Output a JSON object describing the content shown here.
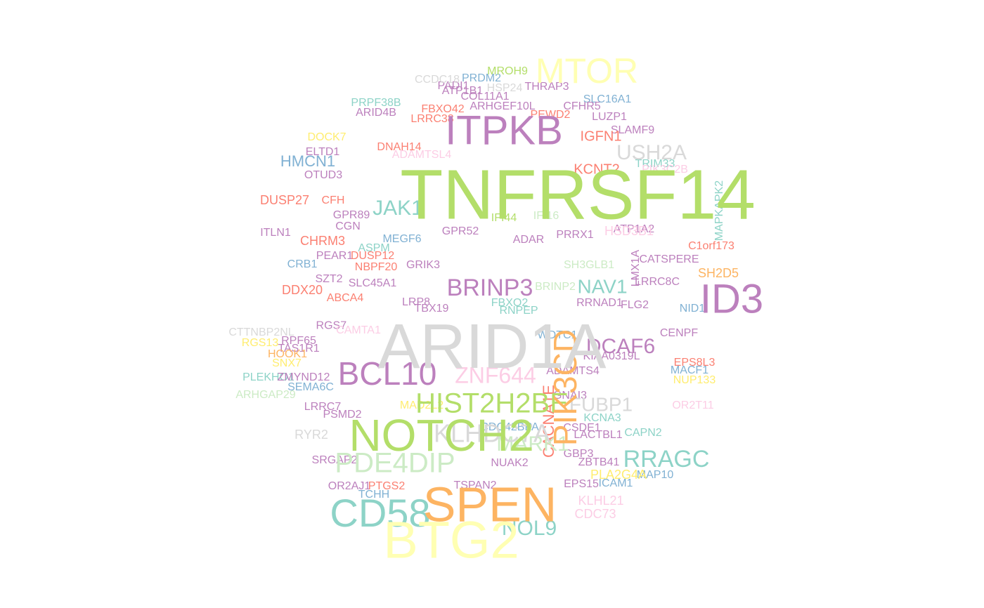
{
  "chart_data": {
    "type": "wordcloud",
    "title": "",
    "palette": [
      "#8DD3C7",
      "#FFFFB3",
      "#BEBADA",
      "#FB8072",
      "#80B1D3",
      "#FDB462",
      "#B3DE69",
      "#FCCDE5",
      "#D9D9D9",
      "#BC80BD",
      "#CCEBC5",
      "#FFED6F"
    ],
    "words": [
      {
        "text": "TNFRSF14",
        "size": 100,
        "color": "#B3DE69"
      },
      {
        "text": "ARID1A",
        "size": 90,
        "color": "#D9D9D9"
      },
      {
        "text": "BTG2",
        "size": 74,
        "color": "#FFFFB3"
      },
      {
        "text": "SPEN",
        "size": 70,
        "color": "#FDB462"
      },
      {
        "text": "NOTCH2",
        "size": 64,
        "color": "#B3DE69"
      },
      {
        "text": "ITPKB",
        "size": 58,
        "color": "#BC80BD"
      },
      {
        "text": "ID3",
        "size": 58,
        "color": "#BC80BD"
      },
      {
        "text": "CD58",
        "size": 56,
        "color": "#8DD3C7"
      },
      {
        "text": "MTOR",
        "size": 50,
        "color": "#FFFFB3"
      },
      {
        "text": "BCL10",
        "size": 46,
        "color": "#BC80BD"
      },
      {
        "text": "PIK3CD",
        "size": 46,
        "color": "#FDB462"
      },
      {
        "text": "HIST2H2BE",
        "size": 40,
        "color": "#B3DE69"
      },
      {
        "text": "PDE4DIP",
        "size": 40,
        "color": "#CCEBC5"
      },
      {
        "text": "KLHDC7A",
        "size": 36,
        "color": "#D9D9D9"
      },
      {
        "text": "BRINP3",
        "size": 34,
        "color": "#BC80BD"
      },
      {
        "text": "RRAGC",
        "size": 34,
        "color": "#8DD3C7"
      },
      {
        "text": "ZNF644",
        "size": 32,
        "color": "#FCCDE5"
      },
      {
        "text": "DCAF6",
        "size": 30,
        "color": "#BC80BD"
      },
      {
        "text": "USH2A",
        "size": 30,
        "color": "#D9D9D9"
      },
      {
        "text": "NOL9",
        "size": 30,
        "color": "#8DD3C7"
      },
      {
        "text": "JAK1",
        "size": 30,
        "color": "#8DD3C7"
      },
      {
        "text": "MARK1",
        "size": 30,
        "color": "#CCEBC5"
      },
      {
        "text": "NAV1",
        "size": 28,
        "color": "#8DD3C7"
      },
      {
        "text": "FUBP1",
        "size": 28,
        "color": "#D9D9D9"
      },
      {
        "text": "CACNA1E",
        "size": 22,
        "color": "#FB8072"
      },
      {
        "text": "HMCN1",
        "size": 22,
        "color": "#80B1D3"
      },
      {
        "text": "KCNT2",
        "size": 20,
        "color": "#FB8072"
      },
      {
        "text": "IGFN1",
        "size": 20,
        "color": "#FB8072"
      },
      {
        "text": "DUSP27",
        "size": 18,
        "color": "#FB8072"
      },
      {
        "text": "DDX20",
        "size": 18,
        "color": "#FB8072"
      },
      {
        "text": "CHRM3",
        "size": 18,
        "color": "#FB8072"
      },
      {
        "text": "RYR2",
        "size": 18,
        "color": "#D9D9D9"
      },
      {
        "text": "HSD3B1",
        "size": 18,
        "color": "#FCCDE5"
      },
      {
        "text": "PLA2G4A",
        "size": 18,
        "color": "#FFED6F"
      },
      {
        "text": "KLHL21",
        "size": 18,
        "color": "#FCCDE5"
      },
      {
        "text": "CDC73",
        "size": 18,
        "color": "#FCCDE5"
      },
      {
        "text": "SH2D5",
        "size": 18,
        "color": "#FDB462"
      },
      {
        "text": "ATP1A2",
        "size": 16,
        "color": "#BC80BD"
      },
      {
        "text": "C1orf173",
        "size": 16,
        "color": "#FB8072"
      },
      {
        "text": "NID1",
        "size": 16,
        "color": "#80B1D3"
      },
      {
        "text": "CENPF",
        "size": 16,
        "color": "#BC80BD"
      },
      {
        "text": "FLG2",
        "size": 16,
        "color": "#BC80BD"
      },
      {
        "text": "ADAMTS4",
        "size": 16,
        "color": "#BC80BD"
      },
      {
        "text": "EPS8L3",
        "size": 16,
        "color": "#FB8072"
      },
      {
        "text": "NUP133",
        "size": 16,
        "color": "#FFED6F"
      },
      {
        "text": "MACF1",
        "size": 16,
        "color": "#80B1D3"
      },
      {
        "text": "OR2T11",
        "size": 16,
        "color": "#FCCDE5"
      },
      {
        "text": "LRRC8C",
        "size": 16,
        "color": "#BC80BD"
      },
      {
        "text": "CATSPERE",
        "size": 16,
        "color": "#BC80BD"
      },
      {
        "text": "TRIM33",
        "size": 16,
        "color": "#8DD3C7"
      },
      {
        "text": "SLAMF9",
        "size": 16,
        "color": "#BC80BD"
      },
      {
        "text": "SLC16A1",
        "size": 16,
        "color": "#80B1D3"
      },
      {
        "text": "CFHR5",
        "size": 16,
        "color": "#BC80BD"
      },
      {
        "text": "LUZP1",
        "size": 16,
        "color": "#BC80BD"
      },
      {
        "text": "PRDM2",
        "size": 16,
        "color": "#80B1D3"
      },
      {
        "text": "MROH9",
        "size": 16,
        "color": "#B3DE69"
      },
      {
        "text": "THRAP3",
        "size": 16,
        "color": "#BC80BD"
      },
      {
        "text": "COL11A1",
        "size": 16,
        "color": "#BC80BD"
      },
      {
        "text": "PADI1",
        "size": 16,
        "color": "#BC80BD"
      },
      {
        "text": "CCDC18",
        "size": 16,
        "color": "#D9D9D9"
      },
      {
        "text": "ARID4B",
        "size": 16,
        "color": "#BC80BD"
      },
      {
        "text": "PRPF38B",
        "size": 16,
        "color": "#8DD3C7"
      },
      {
        "text": "FBXO42",
        "size": 16,
        "color": "#FB8072"
      },
      {
        "text": "LRRC38",
        "size": 16,
        "color": "#FB8072"
      },
      {
        "text": "DNAH14",
        "size": 16,
        "color": "#FB8072"
      },
      {
        "text": "DOCK7",
        "size": 16,
        "color": "#FFED6F"
      },
      {
        "text": "ELTD1",
        "size": 16,
        "color": "#BC80BD"
      },
      {
        "text": "OTUD3",
        "size": 16,
        "color": "#BC80BD"
      },
      {
        "text": "CFH",
        "size": 16,
        "color": "#FB8072"
      },
      {
        "text": "GPR89",
        "size": 16,
        "color": "#BC80BD"
      },
      {
        "text": "CGN",
        "size": 16,
        "color": "#BC80BD"
      },
      {
        "text": "ITLN1",
        "size": 16,
        "color": "#BC80BD"
      },
      {
        "text": "RGS7",
        "size": 16,
        "color": "#BC80BD"
      },
      {
        "text": "CRB1",
        "size": 16,
        "color": "#80B1D3"
      },
      {
        "text": "ASPM",
        "size": 16,
        "color": "#8DD3C7"
      },
      {
        "text": "PEAR1",
        "size": 16,
        "color": "#BC80BD"
      },
      {
        "text": "DUSP12",
        "size": 16,
        "color": "#FB8072"
      },
      {
        "text": "NBPF20",
        "size": 16,
        "color": "#FB8072"
      },
      {
        "text": "SLC45A1",
        "size": 16,
        "color": "#BC80BD"
      },
      {
        "text": "ABCA4",
        "size": 16,
        "color": "#FB8072"
      },
      {
        "text": "CTTNBP2NL",
        "size": 16,
        "color": "#D9D9D9"
      },
      {
        "text": "RGS13",
        "size": 16,
        "color": "#FFED6F"
      },
      {
        "text": "RPF65",
        "size": 16,
        "color": "#BC80BD"
      },
      {
        "text": "TAS1R1",
        "size": 16,
        "color": "#BC80BD"
      },
      {
        "text": "HOOK1",
        "size": 16,
        "color": "#FDB462"
      },
      {
        "text": "SNX7",
        "size": 16,
        "color": "#FFED6F"
      },
      {
        "text": "PLEKHO1",
        "size": 16,
        "color": "#8DD3C7"
      },
      {
        "text": "ZMYND12",
        "size": 16,
        "color": "#BC80BD"
      },
      {
        "text": "SEMA6C",
        "size": 16,
        "color": "#80B1D3"
      },
      {
        "text": "ARHGAP29",
        "size": 16,
        "color": "#CCEBC5"
      },
      {
        "text": "LRRC7",
        "size": 16,
        "color": "#BC80BD"
      },
      {
        "text": "SH3GLB1",
        "size": 16,
        "color": "#CCEBC5"
      },
      {
        "text": "PSMD2",
        "size": 16,
        "color": "#BC80BD"
      },
      {
        "text": "SRGAP2",
        "size": 16,
        "color": "#BC80BD"
      },
      {
        "text": "OR2AJ1",
        "size": 16,
        "color": "#BC80BD"
      },
      {
        "text": "PTGS2",
        "size": 16,
        "color": "#FB8072"
      },
      {
        "text": "TCHH",
        "size": 16,
        "color": "#80B1D3"
      },
      {
        "text": "CSDE1",
        "size": 16,
        "color": "#BC80BD"
      },
      {
        "text": "LACTBL1",
        "size": 16,
        "color": "#BC80BD"
      },
      {
        "text": "ZBTB41",
        "size": 16,
        "color": "#BC80BD"
      },
      {
        "text": "GBP3",
        "size": 16,
        "color": "#BC80BD"
      },
      {
        "text": "EPS15",
        "size": 16,
        "color": "#BC80BD"
      },
      {
        "text": "ICAM1",
        "size": 16,
        "color": "#80B1D3"
      },
      {
        "text": "MAP10",
        "size": 16,
        "color": "#80B1D3"
      },
      {
        "text": "CAPN2",
        "size": 16,
        "color": "#8DD3C7"
      },
      {
        "text": "WDTC1",
        "size": 16,
        "color": "#80B1D3"
      },
      {
        "text": "KCNA3",
        "size": 16,
        "color": "#8DD3C7"
      },
      {
        "text": "GNAI3",
        "size": 16,
        "color": "#BC80BD"
      },
      {
        "text": "TSPAN2",
        "size": 16,
        "color": "#BC80BD"
      },
      {
        "text": "NUAK2",
        "size": 16,
        "color": "#BC80BD"
      },
      {
        "text": "CDC42BPA",
        "size": 16,
        "color": "#80B1D3"
      },
      {
        "text": "MEGF6",
        "size": 16,
        "color": "#80B1D3"
      },
      {
        "text": "GPR52",
        "size": 16,
        "color": "#BC80BD"
      },
      {
        "text": "ADAR",
        "size": 16,
        "color": "#BC80BD"
      },
      {
        "text": "IFI44",
        "size": 16,
        "color": "#B3DE69"
      },
      {
        "text": "GRIK3",
        "size": 16,
        "color": "#BC80BD"
      },
      {
        "text": "LRP8",
        "size": 16,
        "color": "#BC80BD"
      },
      {
        "text": "FBXO2",
        "size": 16,
        "color": "#8DD3C7"
      },
      {
        "text": "CAMTA1",
        "size": 16,
        "color": "#FCCDE5"
      },
      {
        "text": "ADAMTSL4",
        "size": 16,
        "color": "#FCCDE5"
      },
      {
        "text": "ATP1B1",
        "size": 16,
        "color": "#BC80BD"
      },
      {
        "text": "HSP24",
        "size": 16,
        "color": "#D9D9D9"
      },
      {
        "text": "ARHGEF10L",
        "size": 16,
        "color": "#BC80BD"
      },
      {
        "text": "PEWD2",
        "size": 16,
        "color": "#FB8072"
      },
      {
        "text": "PIK3C2B",
        "size": 16,
        "color": "#FCCDE5"
      },
      {
        "text": "MAPKAPK2",
        "size": 16,
        "color": "#8DD3C7"
      },
      {
        "text": "MAD2L2",
        "size": 16,
        "color": "#FFED6F"
      },
      {
        "text": "SZT2",
        "size": 16,
        "color": "#BC80BD"
      },
      {
        "text": "TBX19",
        "size": 16,
        "color": "#BC80BD"
      },
      {
        "text": "RNPEP",
        "size": 16,
        "color": "#8DD3C7"
      },
      {
        "text": "LMX1A",
        "size": 16,
        "color": "#BC80BD"
      },
      {
        "text": "KIAA0319L",
        "size": 16,
        "color": "#BC80BD"
      },
      {
        "text": "IFI16",
        "size": 16,
        "color": "#CCEBC5"
      },
      {
        "text": "PRRX1",
        "size": 16,
        "color": "#BC80BD"
      },
      {
        "text": "RRNAD1",
        "size": 16,
        "color": "#BC80BD"
      },
      {
        "text": "BRINP2",
        "size": 16,
        "color": "#CCEBC5"
      }
    ]
  }
}
